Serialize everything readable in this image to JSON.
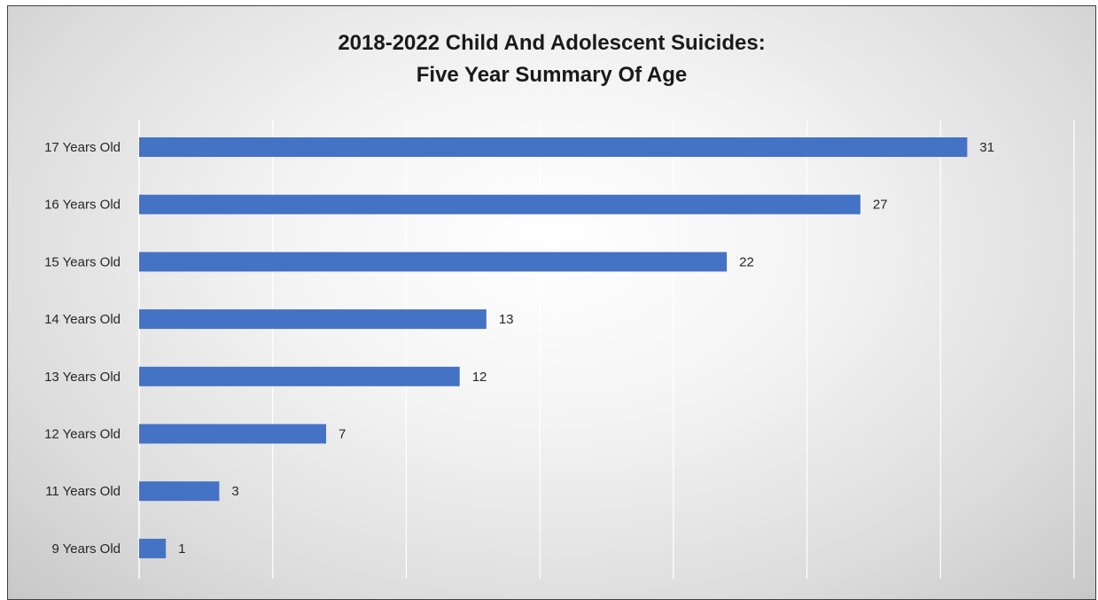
{
  "chart_data": {
    "type": "bar",
    "orientation": "horizontal",
    "title": "2018-2022 Child And Adolescent Suicides:",
    "subtitle": "Five Year Summary Of Age",
    "categories": [
      "17 Years Old",
      "16 Years Old",
      "15 Years Old",
      "14 Years Old",
      "13 Years Old",
      "12 Years Old",
      "11 Years Old",
      "9 Years Old"
    ],
    "values": [
      31,
      27,
      22,
      13,
      12,
      7,
      3,
      1
    ],
    "xlim": [
      0,
      35
    ],
    "grid": true,
    "data_labels": true,
    "bar_color": "#4472c4",
    "gridline_color": "#ffffff"
  }
}
